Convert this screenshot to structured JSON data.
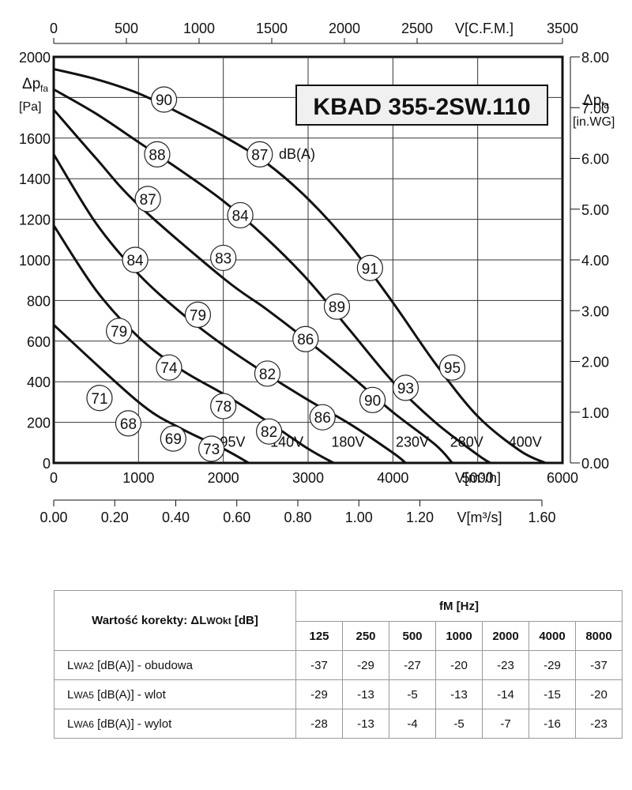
{
  "chart_data": {
    "type": "line",
    "title": "KBAD 355-2SW.110",
    "x_axis": {
      "label": "V[m³/h]",
      "range": [
        0,
        6000
      ],
      "ticks": [
        "0",
        "1000",
        "2000",
        "3000",
        "4000",
        "5000",
        "6000"
      ]
    },
    "x_axis_top": {
      "label": "V[C.F.M.]",
      "range": [
        0,
        3500
      ],
      "ticks": [
        "0",
        "500",
        "1000",
        "1500",
        "2000",
        "2500",
        "3500"
      ]
    },
    "x_axis_bottom2": {
      "label": "V[m³/s]",
      "range": [
        0,
        1.6
      ],
      "ticks": [
        "0.00",
        "0.20",
        "0.40",
        "0.60",
        "0.80",
        "1.00",
        "1.20",
        "1.60"
      ]
    },
    "y_axis": {
      "label_main": "Δp",
      "label_sub": "fa",
      "unit": "[Pa]",
      "range": [
        0,
        2000
      ],
      "ticks": [
        "0",
        "200",
        "400",
        "600",
        "800",
        "1000",
        "1200",
        "1400",
        "1600",
        "2000"
      ]
    },
    "y_axis_right": {
      "label_main": "Δp",
      "label_sub": "fa",
      "unit": "[in.WG]",
      "range": [
        0,
        8
      ],
      "ticks": [
        "0.00",
        "1.00",
        "2.00",
        "3.00",
        "4.00",
        "5.00",
        "6.00",
        "7.00",
        "8.00"
      ]
    },
    "grid": true,
    "units_label": "dB(A)",
    "series": [
      {
        "name": "95V",
        "points": [
          [
            0,
            680
          ],
          [
            1000,
            300
          ],
          [
            1500,
            170
          ],
          [
            2000,
            70
          ],
          [
            2300,
            0
          ]
        ]
      },
      {
        "name": "140V",
        "points": [
          [
            0,
            1170
          ],
          [
            500,
            850
          ],
          [
            1000,
            620
          ],
          [
            1500,
            460
          ],
          [
            2000,
            340
          ],
          [
            2500,
            210
          ],
          [
            3000,
            70
          ],
          [
            3300,
            0
          ]
        ]
      },
      {
        "name": "180V",
        "points": [
          [
            0,
            1520
          ],
          [
            500,
            1180
          ],
          [
            1000,
            930
          ],
          [
            1500,
            740
          ],
          [
            2000,
            580
          ],
          [
            2500,
            440
          ],
          [
            3000,
            310
          ],
          [
            3500,
            190
          ],
          [
            4000,
            50
          ],
          [
            4150,
            0
          ]
        ]
      },
      {
        "name": "230V",
        "points": [
          [
            0,
            1740
          ],
          [
            500,
            1500
          ],
          [
            1000,
            1270
          ],
          [
            2000,
            910
          ],
          [
            2500,
            760
          ],
          [
            3000,
            600
          ],
          [
            3500,
            430
          ],
          [
            4000,
            250
          ],
          [
            4500,
            90
          ],
          [
            4700,
            0
          ]
        ]
      },
      {
        "name": "280V",
        "points": [
          [
            0,
            1840
          ],
          [
            500,
            1720
          ],
          [
            1000,
            1580
          ],
          [
            1500,
            1440
          ],
          [
            2000,
            1290
          ],
          [
            2500,
            1110
          ],
          [
            3000,
            900
          ],
          [
            3500,
            650
          ],
          [
            4000,
            400
          ],
          [
            4500,
            200
          ],
          [
            5000,
            40
          ],
          [
            5150,
            0
          ]
        ]
      },
      {
        "name": "400V",
        "points": [
          [
            0,
            1940
          ],
          [
            500,
            1890
          ],
          [
            1000,
            1820
          ],
          [
            1500,
            1720
          ],
          [
            2000,
            1610
          ],
          [
            2500,
            1480
          ],
          [
            3000,
            1300
          ],
          [
            3500,
            1070
          ],
          [
            4000,
            790
          ],
          [
            4500,
            490
          ],
          [
            5000,
            230
          ],
          [
            5500,
            60
          ],
          [
            5800,
            0
          ]
        ]
      }
    ],
    "noise_labels": [
      {
        "value": "90",
        "x": 1300,
        "y": 1790
      },
      {
        "value": "88",
        "x": 1220,
        "y": 1520
      },
      {
        "value": "87",
        "x": 2430,
        "y": 1520
      },
      {
        "value": "87",
        "x": 1110,
        "y": 1300
      },
      {
        "value": "84",
        "x": 2200,
        "y": 1220
      },
      {
        "value": "84",
        "x": 960,
        "y": 1000
      },
      {
        "value": "83",
        "x": 2000,
        "y": 1010
      },
      {
        "value": "91",
        "x": 3730,
        "y": 960
      },
      {
        "value": "89",
        "x": 3340,
        "y": 770
      },
      {
        "value": "79",
        "x": 1700,
        "y": 730
      },
      {
        "value": "79",
        "x": 770,
        "y": 650
      },
      {
        "value": "86",
        "x": 2970,
        "y": 610
      },
      {
        "value": "74",
        "x": 1360,
        "y": 470
      },
      {
        "value": "95",
        "x": 4700,
        "y": 470
      },
      {
        "value": "82",
        "x": 2520,
        "y": 440
      },
      {
        "value": "93",
        "x": 4150,
        "y": 370
      },
      {
        "value": "71",
        "x": 540,
        "y": 320
      },
      {
        "value": "90",
        "x": 3760,
        "y": 310
      },
      {
        "value": "78",
        "x": 2000,
        "y": 280
      },
      {
        "value": "86",
        "x": 3170,
        "y": 225
      },
      {
        "value": "68",
        "x": 880,
        "y": 195
      },
      {
        "value": "82",
        "x": 2540,
        "y": 155
      },
      {
        "value": "69",
        "x": 1410,
        "y": 120
      },
      {
        "value": "73",
        "x": 1860,
        "y": 70
      }
    ],
    "voltage_labels": [
      {
        "value": "95V",
        "x": 2110,
        "y": 80
      },
      {
        "value": "140V",
        "x": 2750,
        "y": 80
      },
      {
        "value": "180V",
        "x": 3470,
        "y": 80
      },
      {
        "value": "230V",
        "x": 4230,
        "y": 80
      },
      {
        "value": "280V",
        "x": 4870,
        "y": 80
      },
      {
        "value": "400V",
        "x": 5560,
        "y": 80
      }
    ]
  },
  "table": {
    "row_header": "Wartość korekty:  ΔL",
    "row_header_sub": "WOkt",
    "row_header_unit": " [dB]",
    "freq_header": "fM [Hz]",
    "frequencies": [
      "125",
      "250",
      "500",
      "1000",
      "2000",
      "4000",
      "8000"
    ],
    "rows": [
      {
        "prefix": "L",
        "sub": "WA2",
        "label": " [dB(A)] - obudowa",
        "values": [
          "-37",
          "-29",
          "-27",
          "-20",
          "-23",
          "-29",
          "-37"
        ]
      },
      {
        "prefix": "L",
        "sub": "WA5",
        "label": " [dB(A)] - wlot",
        "values": [
          "-29",
          "-13",
          "-5",
          "-13",
          "-14",
          "-15",
          "-20"
        ]
      },
      {
        "prefix": "L",
        "sub": "WA6",
        "label": " [dB(A)] - wylot",
        "values": [
          "-28",
          "-13",
          "-4",
          "-5",
          "-7",
          "-16",
          "-23"
        ]
      }
    ]
  }
}
